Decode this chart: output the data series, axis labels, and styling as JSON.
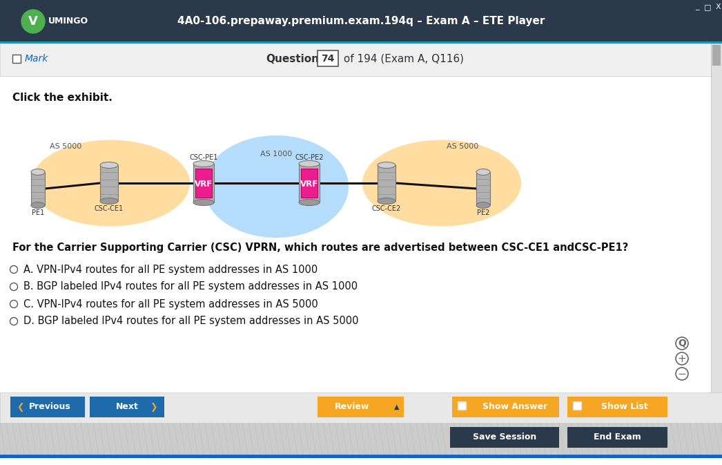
{
  "title_bar_text": "4A0-106.prepaway.premium.exam.194q – Exam A – ETE Player",
  "title_bar_bg": "#2b3a4a",
  "title_bar_accent": "#2196a8",
  "header_bg": "#f0f0f0",
  "mark_text": "Mark",
  "question_text": "Question",
  "question_num": "74",
  "question_total": "of 194 (Exam A, Q116)",
  "content_bg": "#ffffff",
  "exhibit_text": "Click the exhibit.",
  "network_question": "For the Carrier Supporting Carrier (CSC) VPRN, which routes are advertised between CSC-CE1 andCSC-PE1?",
  "options": [
    "A. VPN-IPv4 routes for all PE system addresses in AS 1000",
    "B. BGP labeled IPv4 routes for all PE system addresses in AS 1000",
    "C. VPN-IPv4 routes for all PE system addresses in AS 5000",
    "D. BGP labeled IPv4 routes for all PE system addresses in AS 5000"
  ],
  "btn_prev_text": "Previous",
  "btn_next_text": "Next",
  "btn_prev_next_bg": "#1e6aaa",
  "btn_review_text": "Review",
  "btn_review_bg": "#f5a623",
  "btn_show_answer_text": "Show Answer",
  "btn_show_list_text": "Show List",
  "btn_orange_bg": "#f5a623",
  "btn_save_text": "Save Session",
  "btn_end_text": "End Exam",
  "btn_dark_bg": "#2b3a4a",
  "bottom_bar_bg": "#cccccc",
  "bottom_blue_line": "#1565c0",
  "scrollbar_bg": "#e0e0e0"
}
